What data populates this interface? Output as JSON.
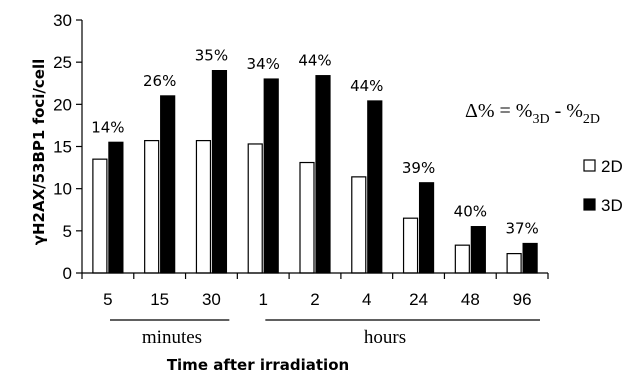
{
  "chart_data": {
    "type": "bar",
    "title": "",
    "xlabel": "Time after irradiation",
    "ylabel": "γH2AX/53BP1 foci/cell",
    "ylim": [
      0,
      30
    ],
    "yticks": [
      "0",
      "5",
      "10",
      "15",
      "20",
      "25",
      "30"
    ],
    "categories": [
      "5",
      "15",
      "30",
      "1",
      "2",
      "4",
      "24",
      "48",
      "96"
    ],
    "groups": [
      {
        "label": "minutes",
        "categories": [
          "5",
          "15",
          "30"
        ]
      },
      {
        "label": "hours",
        "categories": [
          "1",
          "2",
          "4",
          "24",
          "48",
          "96"
        ]
      }
    ],
    "series": [
      {
        "name": "2D",
        "color": "#ffffff",
        "values": [
          13.5,
          15.7,
          15.7,
          15.3,
          13.1,
          11.4,
          6.5,
          3.3,
          2.3
        ]
      },
      {
        "name": "3D",
        "color": "#000000",
        "values": [
          15.5,
          21.0,
          24.0,
          23.0,
          23.4,
          20.4,
          10.7,
          5.5,
          3.5
        ]
      }
    ],
    "data_labels": [
      "14%",
      "26%",
      "35%",
      "34%",
      "44%",
      "44%",
      "39%",
      "40%",
      "37%"
    ],
    "legend_position": "right",
    "grid": false,
    "annotation": {
      "prefix": "Δ% = %",
      "sub1": "3D",
      "middle": " - %",
      "sub2": "2D"
    }
  }
}
